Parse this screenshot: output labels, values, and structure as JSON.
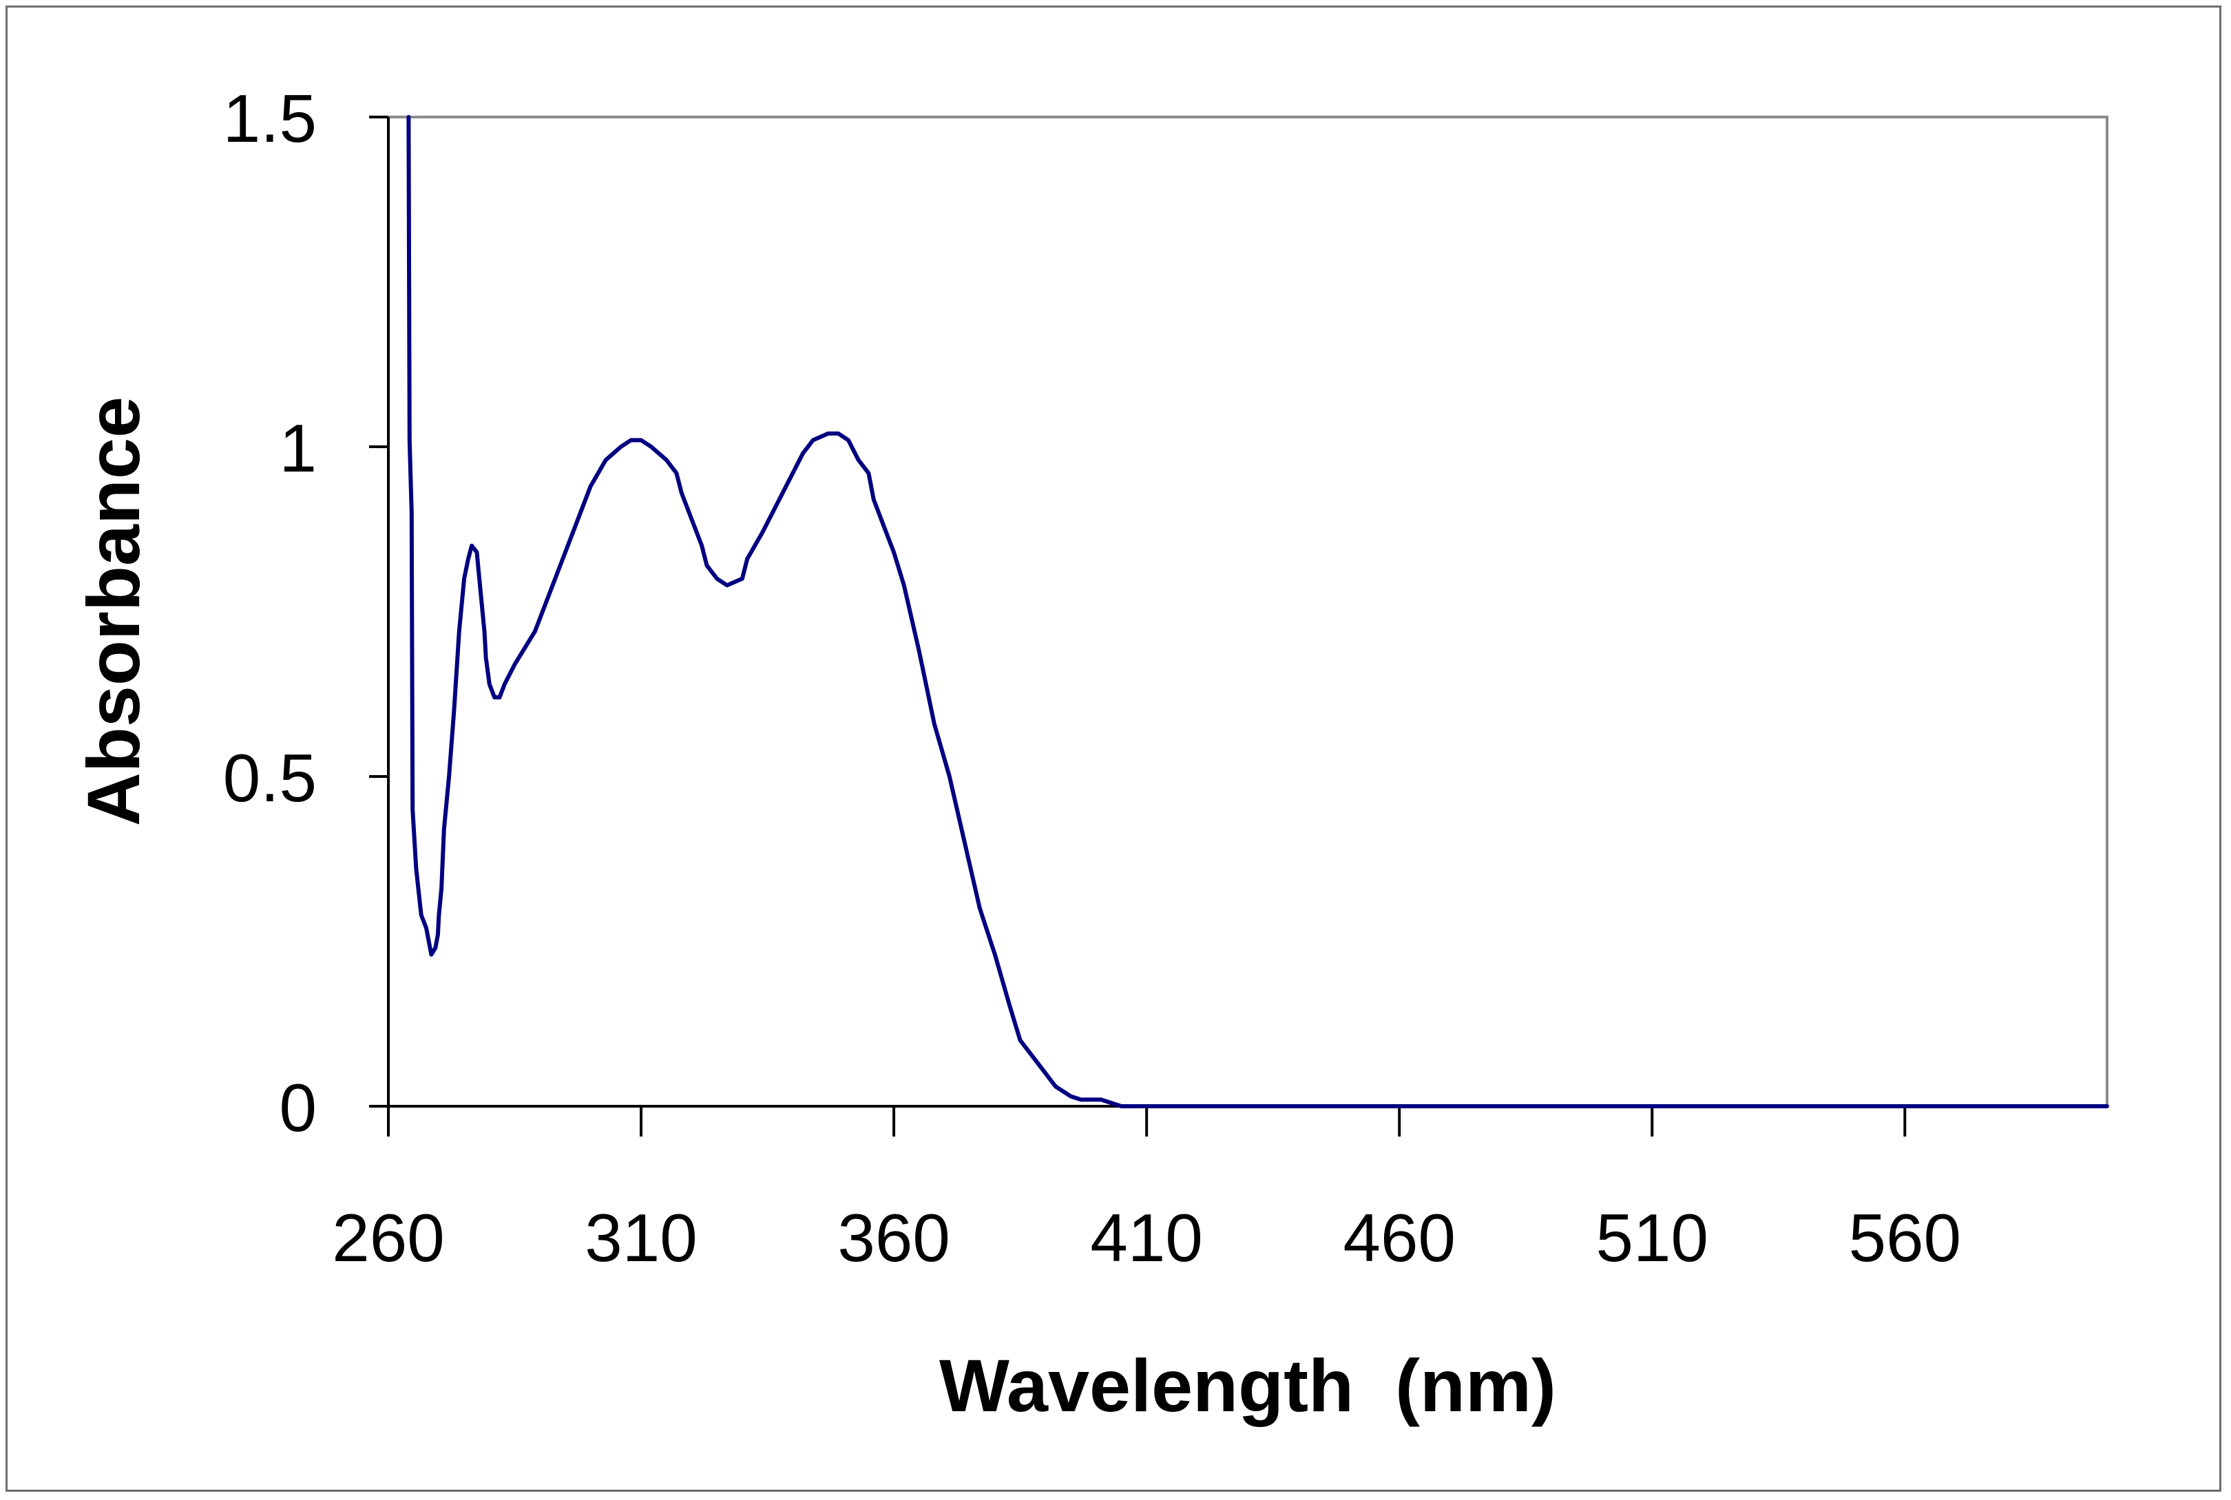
{
  "chart_data": {
    "type": "line",
    "title": "",
    "xlabel": "Wavelength  (nm)",
    "ylabel": "Absorbance",
    "xlim": [
      260,
      600
    ],
    "ylim": [
      0,
      1.5
    ],
    "x_ticks": [
      260,
      310,
      360,
      410,
      460,
      510,
      560
    ],
    "y_ticks": [
      {
        "value": 0,
        "label": "0"
      },
      {
        "value": 0.5,
        "label": "0.5"
      },
      {
        "value": 1,
        "label": "1"
      },
      {
        "value": 1.5,
        "label": "1.5"
      }
    ],
    "grid": false,
    "legend": "none",
    "series": [
      {
        "name": "Absorbance",
        "color": "#000080",
        "points": [
          [
            264,
            1.5
          ],
          [
            264.2,
            1.01
          ],
          [
            264.6,
            0.9
          ],
          [
            264.8,
            0.45
          ],
          [
            265.5,
            0.36
          ],
          [
            266.5,
            0.29
          ],
          [
            267.5,
            0.27
          ],
          [
            268,
            0.25
          ],
          [
            268.5,
            0.23
          ],
          [
            269.3,
            0.24
          ],
          [
            269.8,
            0.26
          ],
          [
            270,
            0.29
          ],
          [
            270.5,
            0.33
          ],
          [
            271,
            0.42
          ],
          [
            272,
            0.5
          ],
          [
            273,
            0.6
          ],
          [
            274,
            0.72
          ],
          [
            275,
            0.8
          ],
          [
            275.8,
            0.83
          ],
          [
            276.5,
            0.85
          ],
          [
            277.5,
            0.84
          ],
          [
            278,
            0.8
          ],
          [
            279,
            0.72
          ],
          [
            279.3,
            0.68
          ],
          [
            280,
            0.64
          ],
          [
            281,
            0.62
          ],
          [
            282,
            0.62
          ],
          [
            283,
            0.64
          ],
          [
            285,
            0.67
          ],
          [
            289,
            0.72
          ],
          [
            294,
            0.82
          ],
          [
            297,
            0.88
          ],
          [
            300,
            0.94
          ],
          [
            303,
            0.98
          ],
          [
            306,
            1.0
          ],
          [
            308,
            1.01
          ],
          [
            310,
            1.01
          ],
          [
            312,
            1.0
          ],
          [
            315,
            0.98
          ],
          [
            317,
            0.96
          ],
          [
            318,
            0.93
          ],
          [
            320,
            0.89
          ],
          [
            322,
            0.85
          ],
          [
            323,
            0.82
          ],
          [
            325,
            0.8
          ],
          [
            327,
            0.79
          ],
          [
            330,
            0.8
          ],
          [
            331,
            0.83
          ],
          [
            334,
            0.87
          ],
          [
            338,
            0.93
          ],
          [
            342,
            0.99
          ],
          [
            344,
            1.01
          ],
          [
            347,
            1.02
          ],
          [
            349,
            1.02
          ],
          [
            351,
            1.01
          ],
          [
            353,
            0.98
          ],
          [
            355,
            0.96
          ],
          [
            356,
            0.92
          ],
          [
            358,
            0.88
          ],
          [
            360,
            0.84
          ],
          [
            362,
            0.79
          ],
          [
            365,
            0.69
          ],
          [
            368,
            0.58
          ],
          [
            371,
            0.5
          ],
          [
            374,
            0.4
          ],
          [
            377,
            0.3
          ],
          [
            380,
            0.23
          ],
          [
            383,
            0.15
          ],
          [
            385,
            0.1
          ],
          [
            389,
            0.06
          ],
          [
            392,
            0.03
          ],
          [
            395,
            0.015
          ],
          [
            397,
            0.01
          ],
          [
            401,
            0.01
          ],
          [
            405,
            0.0
          ],
          [
            450,
            0.0
          ],
          [
            530,
            0.0
          ],
          [
            600,
            0.0
          ]
        ]
      }
    ]
  }
}
